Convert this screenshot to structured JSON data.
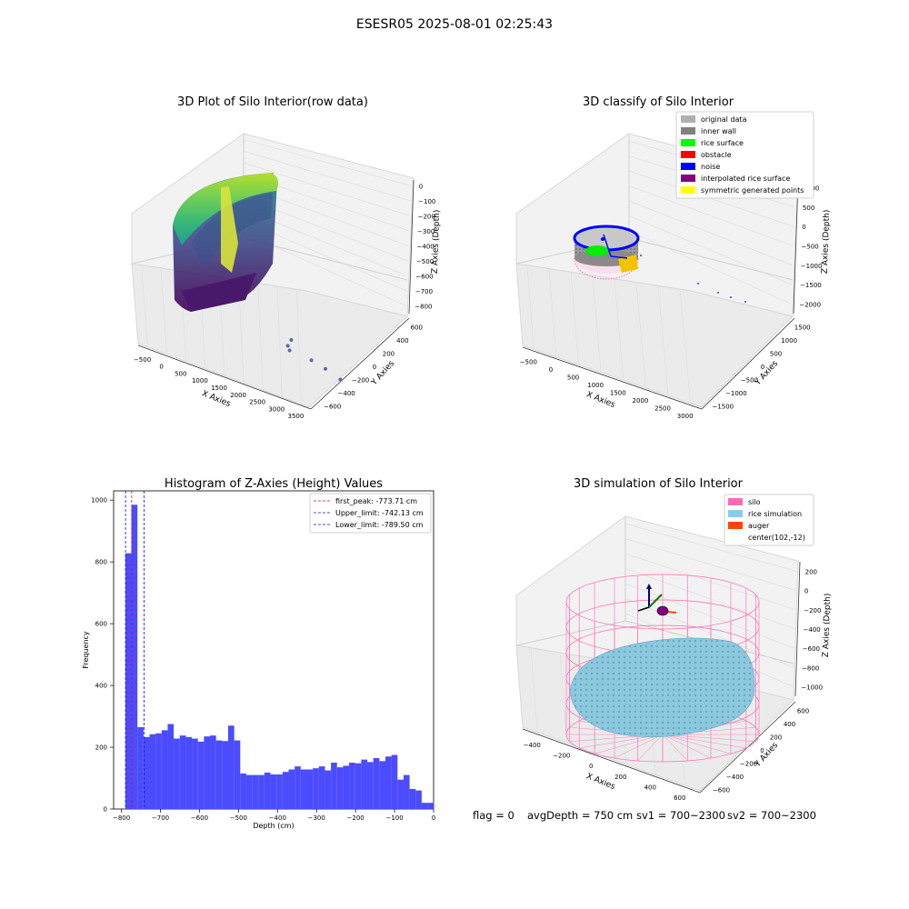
{
  "figure": {
    "title": "ESESR05 2025-08-01 02:25:43",
    "footer": {
      "flag": "flag = 0",
      "avg": "avgDepth = 750 cm",
      "sv1": "sv1 = 700~2300",
      "sv2": "sv2 = 700~2300"
    }
  },
  "colors": {
    "histogram_bar": "#4b4bff",
    "first_peak_line": "#e01010",
    "limit_lines": "#1010e0",
    "original_data": "#b0b0b0",
    "inner_wall": "#808080",
    "rice_surface": "#00ff00",
    "obstacle": "#ff0000",
    "noise": "#0000ff",
    "interpolated_rice_surface": "#800080",
    "symmetric_generated_points": "#ffff00",
    "silo": "#ff69b4",
    "rice_simulation": "#87ceeb",
    "auger": "#ff4500"
  },
  "chart_data": [
    {
      "type": "scatter",
      "projection": "3d",
      "title": "3D Plot of Silo Interior(row data)",
      "xlabel": "X Axies",
      "ylabel": "Y Axies",
      "zlabel": "Z Axies (Depth)",
      "xticks": [
        "−500",
        "0",
        "500",
        "1000",
        "1500",
        "2000",
        "2500",
        "3000",
        "3500"
      ],
      "yticks": [
        "−600",
        "−400",
        "−200",
        "0",
        "200",
        "400",
        "600"
      ],
      "zticks": [
        "0",
        "−100",
        "−200",
        "−300",
        "−400",
        "−500",
        "−600",
        "−700",
        "−800"
      ],
      "outlier_points": [
        [
          2200,
          -200,
          -850
        ],
        [
          2300,
          -150,
          -820
        ],
        [
          2250,
          -180,
          -880
        ],
        [
          2700,
          -300,
          -880
        ],
        [
          3000,
          -350,
          -900
        ],
        [
          3300,
          -450,
          -920
        ]
      ],
      "grid": true
    },
    {
      "type": "scatter",
      "projection": "3d",
      "title": "3D classify of Silo Interior",
      "xlabel": "X Axies",
      "ylabel": "Y Axies",
      "zlabel": "Z Axies (Depth)",
      "xticks": [
        "−500",
        "0",
        "500",
        "1000",
        "1500",
        "2000",
        "2500",
        "3000"
      ],
      "yticks": [
        "−1500",
        "−1000",
        "−500",
        "0",
        "500",
        "1000",
        "1500"
      ],
      "zticks": [
        "1000",
        "500",
        "0",
        "−500",
        "−1000",
        "−1500",
        "−2000"
      ],
      "legend": [
        {
          "label": "original data",
          "color": "#b0b0b0"
        },
        {
          "label": "inner wall",
          "color": "#808080"
        },
        {
          "label": "rice surface",
          "color": "#00ff00"
        },
        {
          "label": "obstacle",
          "color": "#ff0000"
        },
        {
          "label": "noise",
          "color": "#0000ff"
        },
        {
          "label": "interpolated rice surface",
          "color": "#800080"
        },
        {
          "label": "symmetric generated points",
          "color": "#ffff00"
        }
      ],
      "legend_position": "top-right",
      "grid": true
    },
    {
      "type": "bar",
      "title": "Histogram of Z-Axies (Height) Values",
      "xlabel": "Depth (cm)",
      "ylabel": "Frequency",
      "xlim": [
        -820,
        0
      ],
      "ylim": [
        0,
        1030
      ],
      "xticks": [
        -800,
        -700,
        -600,
        -500,
        -400,
        -300,
        -200,
        -100,
        0
      ],
      "yticks": [
        0,
        200,
        400,
        600,
        800,
        1000
      ],
      "bin_start": -790,
      "bin_width": 15.5,
      "values": [
        828,
        985,
        265,
        233,
        242,
        245,
        255,
        275,
        228,
        238,
        233,
        228,
        218,
        235,
        238,
        222,
        220,
        270,
        222,
        115,
        110,
        110,
        110,
        118,
        112,
        112,
        120,
        128,
        138,
        128,
        128,
        132,
        138,
        125,
        150,
        135,
        140,
        150,
        148,
        160,
        152,
        165,
        155,
        170,
        175,
        95,
        110,
        65,
        60,
        20,
        20
      ],
      "vlines": [
        {
          "label": "first_peak: -773.71 cm",
          "x": -773.71,
          "color": "#e01010"
        },
        {
          "label": "Upper_limit: -742.13 cm",
          "x": -742.13,
          "color": "#1010e0"
        },
        {
          "label": "Lower_limit: -789.50 cm",
          "x": -789.5,
          "color": "#1010e0"
        }
      ],
      "legend_position": "top-right"
    },
    {
      "type": "scatter",
      "projection": "3d",
      "title": "3D simulation of Silo Interior",
      "xlabel": "X Axies",
      "ylabel": "Y Axies",
      "zlabel": "Z Axies (Depth)",
      "xticks": [
        "−400",
        "−200",
        "0",
        "200",
        "400",
        "600"
      ],
      "yticks": [
        "−600",
        "−400",
        "−200",
        "0",
        "200",
        "400",
        "600"
      ],
      "zticks": [
        "200",
        "0",
        "−200",
        "−400",
        "−600",
        "−800",
        "−1000"
      ],
      "legend": [
        {
          "label": "silo",
          "color": "#ff69b4"
        },
        {
          "label": "rice simulation",
          "color": "#87ceeb"
        },
        {
          "label": "auger",
          "color": "#ff4500"
        },
        {
          "label": "center(102,-12)",
          "color": ""
        }
      ],
      "legend_position": "top-right",
      "grid": true
    }
  ]
}
